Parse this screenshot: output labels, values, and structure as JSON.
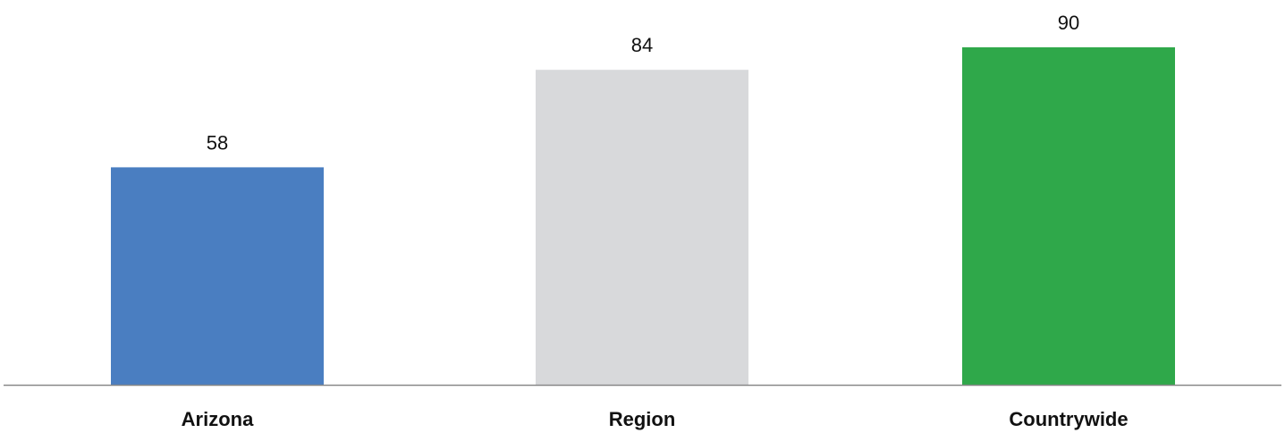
{
  "chart_data": {
    "type": "bar",
    "categories": [
      "Arizona",
      "Region",
      "Countrywide"
    ],
    "values": [
      58,
      84,
      90
    ],
    "colors": [
      "#4A7EC1",
      "#D8D9DB",
      "#2FA84A"
    ],
    "value_labels": [
      "58",
      "84",
      "90"
    ],
    "ylim": [
      0,
      100
    ],
    "grid": false,
    "legend": "none",
    "axis_color": "#888888"
  }
}
